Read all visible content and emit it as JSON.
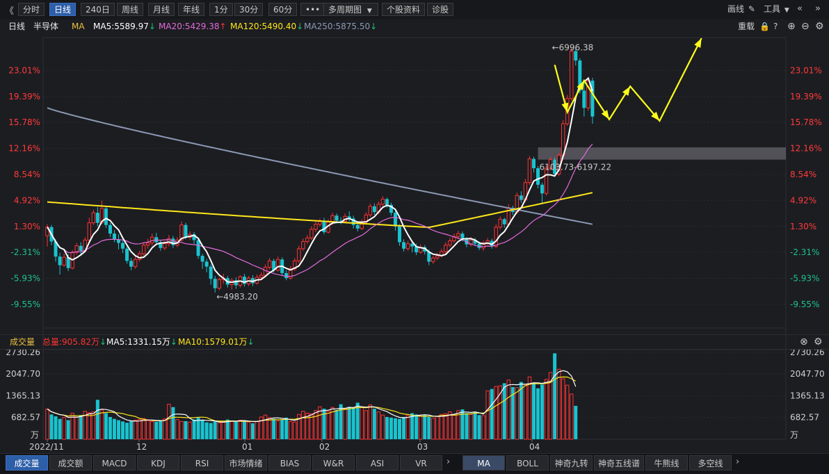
{
  "toolbar": {
    "back": "《",
    "periods": [
      "分时",
      "日线",
      "240日",
      "周线",
      "月线",
      "年线",
      "1分",
      "30分",
      "60分"
    ],
    "active_period": "日线",
    "more": "•••",
    "multi_period": "多周期图",
    "stock_info": "个股资料",
    "diagnose": "诊股",
    "draw": "画线",
    "tools": "工具",
    "prev": "«",
    "next": "»"
  },
  "info": {
    "period": "日线",
    "name": "半导体",
    "ma_label": "MA",
    "ma5": "MA5:5589.97",
    "ma20": "MA20:5429.38",
    "ma120": "MA120:5490.40",
    "ma250": "MA250:5875.50",
    "reload": "重载"
  },
  "volume_header": {
    "title": "成交量",
    "total": "总量:905.82万",
    "ma5": "MA5:1331.15万",
    "ma10": "MA10:1579.01万"
  },
  "bottom_tabs": {
    "left": [
      "成交量",
      "成交额",
      "MACD",
      "KDJ",
      "RSI",
      "市场情绪",
      "BIAS",
      "W&R",
      "ASI",
      "VR"
    ],
    "right": [
      "MA",
      "BOLL",
      "神奇九转",
      "神奇五线谱",
      "牛熊线",
      "多空线"
    ],
    "more": "›"
  },
  "colors": {
    "up": "#ff3333",
    "down": "#19c3cf",
    "ma5": "#ffffff",
    "ma20": "#e36cdb",
    "ma120": "#ffe81a",
    "ma250": "#8c9ab5",
    "annotation": "#ffff1a",
    "zone": "#5a5b60"
  },
  "chart_data": [
    {
      "type": "candlestick",
      "title": "日线 半导体",
      "y_ticks_percent": [
        "23.01%",
        "19.39%",
        "15.78%",
        "12.16%",
        "8.54%",
        "4.92%",
        "1.30%",
        "-2.31%",
        "-5.93%",
        "-9.55%"
      ],
      "y_tick_values": [
        23.01,
        19.39,
        15.78,
        12.16,
        8.54,
        4.92,
        1.3,
        -2.31,
        -5.93,
        -9.55
      ],
      "x_labels": [
        "2022/11",
        "12",
        "01",
        "02",
        "03",
        "04"
      ],
      "annotations": {
        "high": "←6996.38",
        "low": "←4983.20",
        "gap_zone": "6103.73-6197.22"
      },
      "candles": [
        [
          0.0,
          1.2,
          -1.5,
          1.6
        ],
        [
          1.2,
          -0.8,
          -1.3,
          1.5
        ],
        [
          -0.8,
          -2.9,
          -3.6,
          -0.5
        ],
        [
          -2.9,
          -4.1,
          -5.4,
          -2.4
        ],
        [
          -4.1,
          -3.0,
          -4.3,
          -2.5
        ],
        [
          -3.0,
          -4.5,
          -4.9,
          -2.6
        ],
        [
          -4.5,
          -2.3,
          -4.7,
          -2.0
        ],
        [
          -2.3,
          -1.4,
          -2.6,
          -1.0
        ],
        [
          -1.4,
          -2.1,
          -2.8,
          -0.9
        ],
        [
          -2.1,
          -0.6,
          -2.3,
          -0.2
        ],
        [
          -0.6,
          1.8,
          -0.9,
          2.5
        ],
        [
          1.8,
          3.2,
          1.5,
          3.6
        ],
        [
          3.2,
          1.8,
          1.3,
          4.0
        ],
        [
          1.8,
          3.8,
          1.6,
          4.9
        ],
        [
          3.8,
          1.5,
          1.1,
          4.1
        ],
        [
          1.5,
          0.3,
          -0.2,
          1.8
        ],
        [
          0.3,
          -0.5,
          -0.9,
          0.8
        ],
        [
          -0.5,
          -1.0,
          -1.9,
          0.2
        ],
        [
          -1.0,
          -1.8,
          -2.4,
          -0.7
        ],
        [
          -1.8,
          -3.5,
          -3.9,
          -1.5
        ],
        [
          -3.5,
          -4.3,
          -4.8,
          -3.1
        ],
        [
          -4.3,
          -3.3,
          -4.6,
          -2.8
        ],
        [
          -3.3,
          -2.5,
          -3.6,
          -2.1
        ],
        [
          -2.5,
          -1.3,
          -2.8,
          -0.9
        ],
        [
          -1.3,
          -1.0,
          -1.8,
          -0.4
        ],
        [
          -1.0,
          -0.2,
          -1.4,
          0.3
        ],
        [
          -0.2,
          -0.9,
          -1.2,
          0.4
        ],
        [
          -0.9,
          -1.7,
          -2.1,
          -0.6
        ],
        [
          -1.7,
          -1.1,
          -2.0,
          -0.7
        ],
        [
          -1.1,
          -0.4,
          -1.5,
          0.1
        ],
        [
          -0.4,
          -1.3,
          -1.7,
          0.0
        ],
        [
          -1.3,
          -0.6,
          -1.6,
          -0.2
        ],
        [
          -0.6,
          1.5,
          -0.8,
          2.0
        ],
        [
          1.5,
          -0.2,
          -0.5,
          1.8
        ],
        [
          -0.2,
          0.2,
          -0.6,
          0.6
        ],
        [
          0.2,
          -0.6,
          -1.1,
          0.5
        ],
        [
          -0.6,
          -2.8,
          -3.2,
          -0.4
        ],
        [
          -2.8,
          -3.6,
          -4.6,
          -2.5
        ],
        [
          -3.6,
          -4.3,
          -5.1,
          -3.2
        ],
        [
          -4.3,
          -6.0,
          -6.8,
          -4.0
        ],
        [
          -6.0,
          -7.3,
          -7.9,
          -5.6
        ],
        [
          -7.3,
          -6.1,
          -7.6,
          -5.8
        ],
        [
          -6.1,
          -5.9,
          -6.7,
          -5.3
        ],
        [
          -5.9,
          -6.8,
          -7.2,
          -5.6
        ],
        [
          -6.8,
          -6.2,
          -7.5,
          -5.9
        ],
        [
          -6.2,
          -6.9,
          -7.4,
          -5.8
        ],
        [
          -6.9,
          -5.7,
          -7.2,
          -5.5
        ],
        [
          -5.7,
          -6.7,
          -7.1,
          -5.3
        ],
        [
          -6.7,
          -5.9,
          -7.0,
          -5.6
        ],
        [
          -5.9,
          -6.6,
          -7.0,
          -5.5
        ],
        [
          -6.6,
          -5.8,
          -6.8,
          -5.4
        ],
        [
          -5.8,
          -5.5,
          -6.1,
          -5.1
        ],
        [
          -5.5,
          -4.4,
          -5.8,
          -4.0
        ],
        [
          -4.4,
          -3.5,
          -4.7,
          -3.1
        ],
        [
          -3.5,
          -4.8,
          -5.1,
          -3.2
        ],
        [
          -4.8,
          -3.3,
          -5.0,
          -2.9
        ],
        [
          -3.3,
          -5.2,
          -5.6,
          -3.0
        ],
        [
          -5.2,
          -5.9,
          -6.2,
          -4.8
        ],
        [
          -5.9,
          -4.6,
          -6.1,
          -4.2
        ],
        [
          -4.6,
          -3.5,
          -4.9,
          -3.1
        ],
        [
          -3.5,
          -1.8,
          -3.8,
          -1.4
        ],
        [
          -1.8,
          -0.8,
          -2.1,
          -0.4
        ],
        [
          -0.8,
          -0.3,
          -1.1,
          0.1
        ],
        [
          -0.3,
          0.9,
          -0.6,
          1.3
        ],
        [
          0.9,
          1.6,
          0.5,
          2.1
        ],
        [
          1.6,
          2.0,
          1.3,
          2.4
        ],
        [
          2.0,
          0.5,
          0.2,
          2.5
        ],
        [
          0.5,
          1.9,
          0.3,
          2.3
        ],
        [
          1.9,
          2.8,
          1.5,
          3.2
        ],
        [
          2.8,
          2.1,
          1.7,
          3.1
        ],
        [
          2.1,
          2.0,
          1.6,
          2.6
        ],
        [
          2.0,
          2.7,
          1.8,
          3.1
        ],
        [
          2.7,
          2.4,
          2.0,
          3.4
        ],
        [
          2.4,
          1.5,
          1.0,
          2.8
        ],
        [
          1.5,
          1.0,
          0.6,
          1.9
        ],
        [
          1.0,
          1.9,
          0.8,
          2.3
        ],
        [
          1.9,
          2.9,
          1.6,
          3.3
        ],
        [
          2.9,
          4.1,
          2.6,
          4.5
        ],
        [
          4.1,
          3.3,
          2.9,
          4.5
        ],
        [
          3.3,
          4.4,
          3.0,
          4.8
        ],
        [
          4.4,
          5.1,
          4.1,
          5.5
        ],
        [
          5.1,
          4.3,
          3.9,
          5.3
        ],
        [
          4.3,
          3.2,
          2.8,
          4.6
        ],
        [
          3.2,
          1.3,
          0.7,
          3.5
        ],
        [
          1.3,
          -0.9,
          -1.4,
          1.6
        ],
        [
          -0.9,
          -1.8,
          -2.2,
          -0.5
        ],
        [
          -1.8,
          -1.1,
          -2.1,
          -0.7
        ],
        [
          -1.1,
          -1.5,
          -2.3,
          -0.8
        ],
        [
          -1.5,
          -2.3,
          -2.7,
          -1.1
        ],
        [
          -2.3,
          -1.6,
          -2.5,
          -1.2
        ],
        [
          -1.6,
          -2.2,
          -2.6,
          -1.3
        ],
        [
          -2.2,
          -3.6,
          -4.1,
          -1.9
        ],
        [
          -3.6,
          -3.1,
          -3.9,
          -2.8
        ],
        [
          -3.1,
          -2.8,
          -3.4,
          -2.4
        ],
        [
          -2.8,
          -2.2,
          -3.0,
          -1.8
        ],
        [
          -2.2,
          -1.3,
          -2.5,
          -0.9
        ],
        [
          -1.3,
          -0.7,
          -1.6,
          -0.3
        ],
        [
          -0.7,
          -0.1,
          -1.0,
          0.3
        ],
        [
          -0.1,
          0.3,
          -0.5,
          0.7
        ],
        [
          0.3,
          -0.4,
          -0.8,
          0.6
        ],
        [
          -0.4,
          -1.2,
          -1.6,
          -0.2
        ],
        [
          -1.2,
          -0.6,
          -1.5,
          -0.2
        ],
        [
          -0.6,
          -1.1,
          -1.4,
          -0.3
        ],
        [
          -1.1,
          -1.7,
          -2.0,
          -0.8
        ],
        [
          -1.7,
          -1.0,
          -2.1,
          -0.7
        ],
        [
          -1.0,
          -0.7,
          -1.3,
          -0.3
        ],
        [
          -0.7,
          -1.5,
          -1.8,
          -0.4
        ],
        [
          -1.5,
          1.2,
          -1.7,
          1.6
        ],
        [
          1.2,
          2.3,
          0.9,
          2.7
        ],
        [
          2.3,
          1.6,
          1.1,
          2.5
        ],
        [
          1.6,
          3.9,
          1.3,
          4.4
        ],
        [
          3.9,
          3.3,
          2.9,
          4.2
        ],
        [
          3.3,
          5.6,
          3.0,
          6.0
        ],
        [
          5.6,
          5.0,
          4.6,
          6.2
        ],
        [
          5.0,
          7.4,
          4.7,
          7.9
        ],
        [
          7.4,
          10.7,
          7.1,
          11.1
        ],
        [
          10.7,
          9.4,
          8.8,
          11.0
        ],
        [
          9.4,
          7.1,
          6.6,
          9.7
        ],
        [
          7.1,
          5.9,
          4.4,
          7.4
        ],
        [
          5.9,
          9.4,
          5.6,
          9.8
        ],
        [
          9.4,
          10.6,
          9.1,
          11.0
        ],
        [
          10.6,
          8.6,
          8.2,
          10.9
        ],
        [
          8.6,
          11.2,
          8.3,
          11.5
        ],
        [
          11.2,
          15.6,
          10.9,
          16.1
        ],
        [
          15.6,
          19.1,
          15.3,
          19.6
        ],
        [
          19.1,
          25.7,
          18.8,
          26.3
        ],
        [
          25.7,
          24.4,
          23.7,
          26.3
        ],
        [
          24.4,
          20.2,
          19.8,
          24.7
        ],
        [
          20.2,
          17.8,
          16.6,
          21.6
        ],
        [
          17.8,
          21.6,
          17.4,
          22.1
        ],
        [
          21.6,
          16.6,
          15.6,
          22.0
        ]
      ],
      "volume": {
        "y_ticks": [
          "2730.26",
          "2047.70",
          "1365.13",
          "682.57",
          "万"
        ],
        "y_tick_values": [
          2730.26,
          2047.7,
          1365.13,
          682.57
        ],
        "values": [
          950,
          780,
          720,
          640,
          690,
          600,
          820,
          700,
          760,
          880,
          830,
          860,
          1240,
          920,
          820,
          700,
          640,
          600,
          560,
          520,
          570,
          600,
          620,
          650,
          590,
          560,
          550,
          590,
          640,
          1100,
          1010,
          620,
          560,
          570,
          540,
          620,
          680,
          600,
          530,
          510,
          560,
          520,
          560,
          620,
          570,
          560,
          600,
          590,
          540,
          500,
          560,
          700,
          760,
          680,
          640,
          580,
          620,
          680,
          560,
          540,
          780,
          880,
          820,
          800,
          900,
          1020,
          960,
          880,
          1000,
          920,
          1100,
          960,
          1020,
          980,
          1150,
          1000,
          900,
          1080,
          960,
          860,
          760,
          700,
          680,
          660,
          640,
          700,
          760,
          820,
          780,
          740,
          760,
          700,
          660,
          720,
          780,
          800,
          860,
          760,
          900,
          940,
          820,
          780,
          860,
          760,
          740,
          1520,
          1580,
          1660,
          1680,
          1760,
          1860,
          1640,
          1620,
          1800,
          1720,
          1960,
          1780,
          1600,
          1720,
          1880,
          2100,
          2700,
          2200,
          1900,
          1700,
          1420,
          1050
        ]
      }
    }
  ]
}
